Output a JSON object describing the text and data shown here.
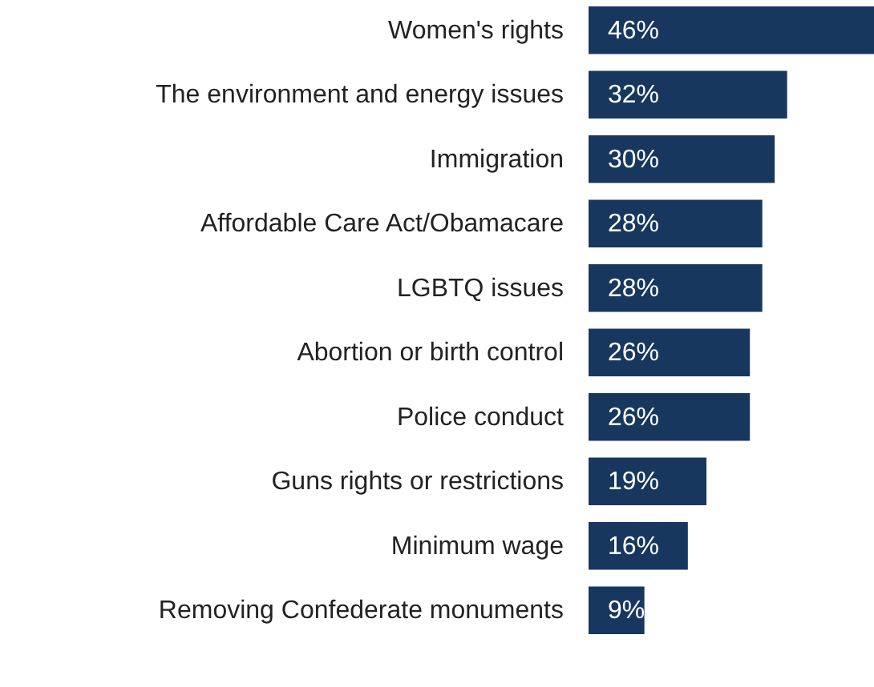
{
  "chart_data": {
    "type": "bar",
    "orientation": "horizontal",
    "categories": [
      "Women's rights",
      "The environment and energy issues",
      "Immigration",
      "Affordable Care Act/Obamacare",
      "LGBTQ issues",
      "Abortion or birth control",
      "Police conduct",
      "Guns rights or restrictions",
      "Minimum wage",
      "Removing Confederate monuments"
    ],
    "values": [
      46,
      32,
      30,
      28,
      28,
      26,
      26,
      19,
      16,
      9
    ],
    "value_labels": [
      "46%",
      "32%",
      "30%",
      "28%",
      "28%",
      "26%",
      "26%",
      "19%",
      "16%",
      "9%"
    ],
    "color": "#17375e"
  }
}
